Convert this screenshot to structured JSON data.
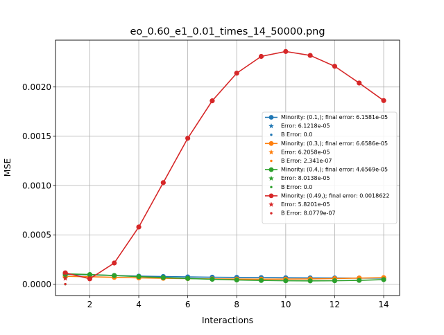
{
  "chart_data": {
    "type": "line",
    "title": "eo_0.60_e1_0.01_times_14_50000.png",
    "xlabel": "Interactions",
    "ylabel": "MSE",
    "xlim": [
      0.6,
      14.65
    ],
    "ylim": [
      -0.000115,
      0.002475
    ],
    "xticks": [
      2,
      4,
      6,
      8,
      10,
      12,
      14
    ],
    "xtick_labels": [
      "2",
      "4",
      "6",
      "8",
      "10",
      "12",
      "14"
    ],
    "yticks": [
      0,
      0.0005,
      0.001,
      0.0015,
      0.002
    ],
    "ytick_labels": [
      "0.0000",
      "0.0005",
      "0.0010",
      "0.0015",
      "0.0020"
    ],
    "grid": true,
    "legend_position": "center-right",
    "x": [
      1,
      2,
      3,
      4,
      5,
      6,
      7,
      8,
      9,
      10,
      11,
      12,
      13,
      14
    ],
    "series": [
      {
        "name": "Minority: (0.1,); final error: 6.1581e-05",
        "color": "#1f77b4",
        "values": [
          0.0001,
          9.5e-05,
          8.8e-05,
          8.2e-05,
          7.8e-05,
          7.4e-05,
          7.1e-05,
          6.9e-05,
          6.7e-05,
          6.5e-05,
          6.4e-05,
          6.3e-05,
          6.2e-05,
          6.16e-05
        ]
      },
      {
        "name": "Minority: (0.3,); final error: 6.6586e-05",
        "color": "#ff7f0e",
        "values": [
          8e-05,
          7.6e-05,
          7e-05,
          6.4e-05,
          6e-05,
          5.7e-05,
          5.4e-05,
          5.2e-05,
          5.1e-05,
          5.2e-05,
          5.4e-05,
          5.7e-05,
          6.2e-05,
          6.66e-05
        ]
      },
      {
        "name": "Minority: (0.4,); final error: 4.6569e-05",
        "color": "#2ca02c",
        "values": [
          0.000105,
          9.8e-05,
          8.8e-05,
          7.7e-05,
          6.7e-05,
          5.8e-05,
          5e-05,
          4.3e-05,
          3.8e-05,
          3.5e-05,
          3.4e-05,
          3.5e-05,
          3.9e-05,
          4.66e-05
        ]
      },
      {
        "name": "Minority: (0.49,); final error: 0.0018622",
        "color": "#d62728",
        "values": [
          0.000115,
          5.5e-05,
          0.000215,
          0.00058,
          0.00103,
          0.00148,
          0.00186,
          0.00214,
          0.00231,
          0.00236,
          0.00232,
          0.00221,
          0.00204,
          0.0018622
        ]
      }
    ],
    "error_markers": [
      {
        "name": "Error: 6.1218e-05",
        "color": "#1f77b4",
        "x": 1,
        "y": 6.12e-05
      },
      {
        "name": "B Error: 0.0",
        "color": "#1f77b4",
        "x": 1,
        "y": 0.0
      },
      {
        "name": "Error: 6.2058e-05",
        "color": "#ff7f0e",
        "x": 1,
        "y": 6.21e-05
      },
      {
        "name": "B Error: 2.341e-07",
        "color": "#ff7f0e",
        "x": 1,
        "y": 2.34e-07
      },
      {
        "name": "Error: 8.0138e-05",
        "color": "#2ca02c",
        "x": 1,
        "y": 8.01e-05
      },
      {
        "name": "B Error: 0.0",
        "color": "#2ca02c",
        "x": 1,
        "y": 0.0
      },
      {
        "name": "Error: 5.8201e-05",
        "color": "#d62728",
        "x": 1,
        "y": 5.82e-05
      },
      {
        "name": "B Error: 8.0779e-07",
        "color": "#d62728",
        "x": 1,
        "y": 8.08e-07
      }
    ],
    "legend": [
      {
        "label": "Minority: (0.1,); final error: 6.1581e-05",
        "kind": "line",
        "color": "#1f77b4"
      },
      {
        "label": "Error: 6.1218e-05",
        "kind": "star",
        "color": "#1f77b4"
      },
      {
        "label": "B Error: 0.0",
        "kind": "dot",
        "color": "#1f77b4"
      },
      {
        "label": "Minority: (0.3,); final error: 6.6586e-05",
        "kind": "line",
        "color": "#ff7f0e"
      },
      {
        "label": "Error: 6.2058e-05",
        "kind": "star",
        "color": "#ff7f0e"
      },
      {
        "label": "B Error: 2.341e-07",
        "kind": "dot",
        "color": "#ff7f0e"
      },
      {
        "label": "Minority: (0.4,); final error: 4.6569e-05",
        "kind": "line",
        "color": "#2ca02c"
      },
      {
        "label": "Error: 8.0138e-05",
        "kind": "star",
        "color": "#2ca02c"
      },
      {
        "label": "B Error: 0.0",
        "kind": "dot",
        "color": "#2ca02c"
      },
      {
        "label": "Minority: (0.49,); final error: 0.0018622",
        "kind": "line",
        "color": "#d62728"
      },
      {
        "label": "Error: 5.8201e-05",
        "kind": "star",
        "color": "#d62728"
      },
      {
        "label": "B Error: 8.0779e-07",
        "kind": "dot",
        "color": "#d62728"
      }
    ]
  }
}
